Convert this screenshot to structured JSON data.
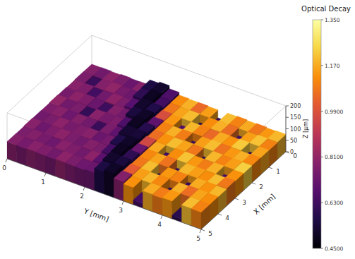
{
  "chart_data": {
    "type": "surface3d",
    "xlabel": "X [mm]",
    "ylabel": "Y [mm]",
    "zlabel": "Z [μm]",
    "xlim": [
      0,
      5
    ],
    "ylim": [
      0,
      5
    ],
    "zlim": [
      0,
      200
    ],
    "xticks": [
      0,
      1,
      2,
      3,
      4,
      5
    ],
    "yticks": [
      0,
      1,
      2,
      3,
      4,
      5
    ],
    "zticks": [
      0,
      50,
      100,
      150,
      200
    ],
    "x_bins": [
      0,
      0.5,
      1,
      1.5,
      2,
      2.5,
      3,
      3.5,
      4,
      4.5,
      5
    ],
    "y_bins": [
      0,
      0.25,
      0.5,
      0.75,
      1,
      1.25,
      1.5,
      1.75,
      2,
      2.25,
      2.5,
      2.75,
      3,
      3.25,
      3.5,
      3.75,
      4,
      4.25,
      4.5,
      4.75,
      5
    ],
    "decay": [
      [
        0.78,
        0.74,
        0.8,
        0.76,
        0.72,
        0.79,
        0.56,
        0.52,
        0.66,
        1.12,
        1.18,
        1.05,
        1.15,
        0.62,
        1.2,
        1.1,
        1.17,
        1.08,
        1.14,
        1.19
      ],
      [
        0.76,
        0.62,
        0.78,
        0.81,
        0.75,
        0.73,
        0.6,
        0.5,
        0.64,
        1.08,
        1.16,
        1.2,
        0.58,
        1.12,
        1.18,
        1.06,
        0.64,
        1.15,
        1.21,
        1.1
      ],
      [
        0.79,
        0.77,
        0.64,
        0.74,
        0.8,
        0.76,
        0.68,
        0.52,
        0.57,
        0.98,
        1.14,
        0.66,
        1.19,
        1.1,
        1.05,
        1.17,
        1.13,
        1.22,
        0.6,
        1.16
      ],
      [
        0.75,
        0.8,
        0.77,
        0.72,
        0.63,
        0.78,
        0.74,
        0.55,
        0.51,
        0.7,
        1.1,
        1.18,
        1.09,
        0.62,
        1.15,
        1.2,
        1.07,
        1.14,
        1.18,
        1.11
      ],
      [
        0.81,
        0.74,
        0.76,
        0.61,
        0.79,
        0.75,
        0.77,
        0.66,
        0.5,
        0.58,
        1.06,
        1.13,
        1.2,
        1.16,
        1.08,
        0.59,
        1.19,
        1.1,
        1.15,
        1.23
      ],
      [
        0.77,
        0.79,
        0.73,
        0.78,
        0.74,
        0.62,
        0.76,
        0.7,
        0.53,
        0.54,
        0.96,
        1.17,
        0.63,
        1.12,
        1.21,
        1.14,
        1.09,
        1.18,
        0.65,
        1.13
      ],
      [
        0.74,
        0.76,
        0.8,
        0.75,
        0.77,
        0.79,
        0.72,
        0.75,
        0.57,
        0.51,
        0.72,
        1.11,
        1.16,
        1.07,
        0.61,
        1.19,
        1.15,
        1.12,
        1.2,
        1.08
      ],
      [
        0.79,
        0.73,
        0.77,
        0.8,
        0.76,
        0.74,
        0.78,
        0.76,
        0.64,
        0.5,
        0.6,
        1.08,
        1.2,
        0.58,
        1.14,
        1.1,
        0.62,
        1.17,
        1.13,
        1.19
      ],
      [
        0.76,
        0.78,
        0.75,
        0.73,
        0.79,
        0.77,
        0.74,
        0.8,
        0.69,
        0.52,
        0.55,
        1.02,
        1.15,
        1.19,
        1.11,
        0.6,
        1.18,
        1.06,
        1.16,
        1.12
      ],
      [
        0.78,
        0.75,
        0.79,
        0.77,
        0.74,
        0.8,
        0.76,
        0.73,
        0.72,
        0.56,
        0.51,
        0.78,
        1.13,
        0.64,
        1.17,
        1.09,
        1.14,
        0.59,
        1.2,
        1.1
      ]
    ],
    "z": [
      [
        74,
        75,
        73,
        76,
        74,
        75,
        98,
        104,
        90,
        78,
        76,
        77,
        75,
        40,
        76,
        78,
        75,
        77,
        74,
        76
      ],
      [
        75,
        70,
        74,
        76,
        75,
        74,
        96,
        105,
        88,
        77,
        75,
        76,
        38,
        75,
        77,
        76,
        42,
        75,
        76,
        74
      ],
      [
        73,
        75,
        71,
        74,
        76,
        75,
        86,
        103,
        97,
        80,
        76,
        44,
        75,
        77,
        74,
        76,
        75,
        77,
        36,
        75
      ],
      [
        75,
        74,
        76,
        73,
        70,
        75,
        76,
        100,
        104,
        85,
        77,
        75,
        76,
        41,
        75,
        77,
        76,
        75,
        74,
        76
      ],
      [
        76,
        75,
        74,
        70,
        75,
        76,
        75,
        88,
        106,
        95,
        78,
        76,
        75,
        77,
        74,
        37,
        76,
        75,
        77,
        75
      ],
      [
        74,
        76,
        75,
        74,
        73,
        71,
        76,
        80,
        102,
        100,
        83,
        75,
        43,
        76,
        77,
        75,
        74,
        76,
        40,
        75
      ],
      [
        75,
        74,
        76,
        75,
        74,
        76,
        75,
        77,
        95,
        105,
        86,
        76,
        75,
        77,
        39,
        75,
        76,
        74,
        75,
        77
      ],
      [
        76,
        75,
        74,
        76,
        75,
        74,
        76,
        75,
        88,
        106,
        92,
        77,
        75,
        35,
        76,
        74,
        42,
        76,
        75,
        74
      ],
      [
        74,
        76,
        75,
        74,
        76,
        75,
        74,
        76,
        82,
        103,
        99,
        80,
        76,
        75,
        77,
        38,
        75,
        77,
        76,
        75
      ],
      [
        75,
        74,
        76,
        75,
        74,
        76,
        75,
        74,
        78,
        96,
        104,
        84,
        75,
        20,
        76,
        74,
        77,
        15,
        76,
        75
      ]
    ],
    "colorbar": {
      "label": "Optical Decay",
      "range": [
        0.45,
        1.35
      ],
      "ticks": [
        {
          "value": 0.45,
          "label": "0.4500"
        },
        {
          "value": 0.63,
          "label": "0.6300"
        },
        {
          "value": 0.81,
          "label": "0.8100"
        },
        {
          "value": 0.99,
          "label": "0.9900"
        },
        {
          "value": 1.17,
          "label": "1.170"
        },
        {
          "value": 1.35,
          "label": "1.350"
        }
      ]
    }
  }
}
